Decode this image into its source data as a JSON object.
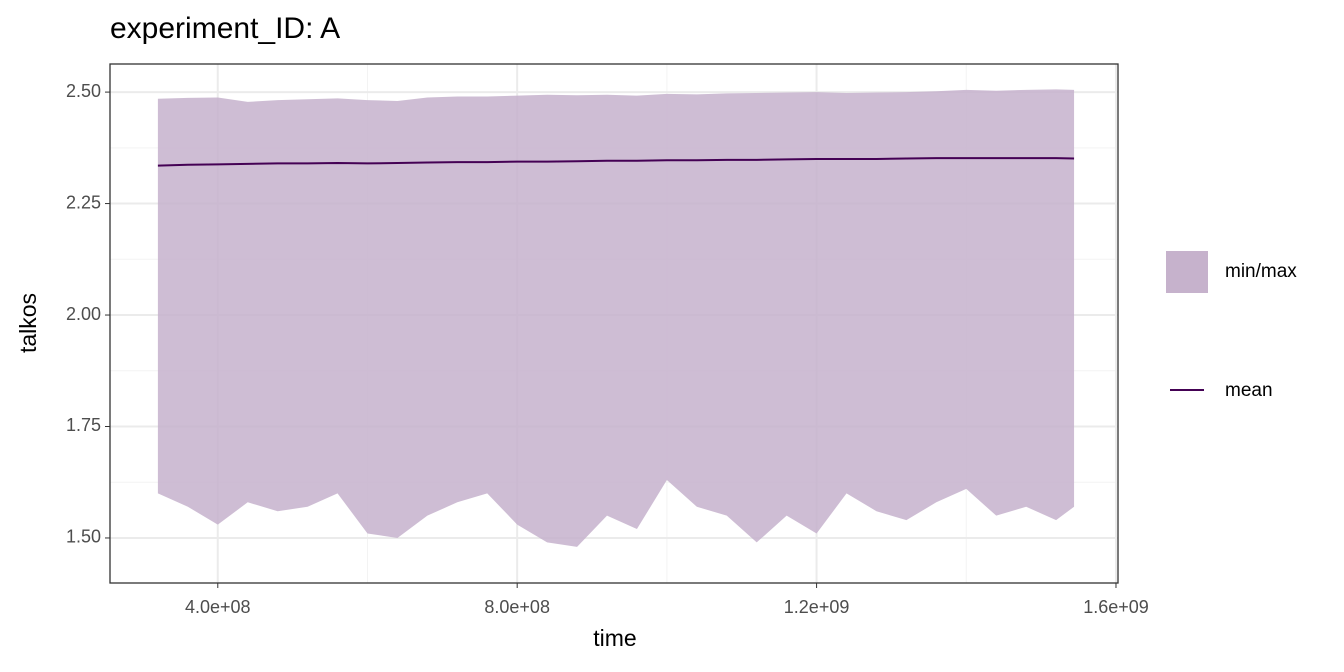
{
  "chart_data": {
    "type": "ribbon-line",
    "title": "experiment_ID: A",
    "x_label": "time",
    "y_label": "talkos",
    "x": [
      320000000,
      360000000,
      400000000,
      440000000,
      480000000,
      520000000,
      560000000,
      600000000,
      640000000,
      680000000,
      720000000,
      760000000,
      800000000,
      840000000,
      880000000,
      920000000,
      960000000,
      1000000000,
      1040000000,
      1080000000,
      1120000000,
      1160000000,
      1200000000,
      1240000000,
      1280000000,
      1320000000,
      1360000000,
      1400000000,
      1440000000,
      1480000000,
      1520000000,
      1544000000
    ],
    "series": [
      {
        "name": "min/max",
        "color": "#c6b2cc",
        "ymin": [
          1.6,
          1.57,
          1.53,
          1.58,
          1.56,
          1.57,
          1.6,
          1.51,
          1.5,
          1.55,
          1.58,
          1.6,
          1.53,
          1.49,
          1.48,
          1.55,
          1.52,
          1.63,
          1.57,
          1.55,
          1.49,
          1.55,
          1.51,
          1.6,
          1.56,
          1.54,
          1.58,
          1.61,
          1.55,
          1.57,
          1.54,
          1.57
        ],
        "ymax": [
          2.485,
          2.487,
          2.488,
          2.478,
          2.482,
          2.484,
          2.486,
          2.482,
          2.48,
          2.488,
          2.49,
          2.49,
          2.492,
          2.494,
          2.493,
          2.494,
          2.492,
          2.496,
          2.495,
          2.497,
          2.498,
          2.499,
          2.5,
          2.498,
          2.499,
          2.5,
          2.502,
          2.505,
          2.503,
          2.505,
          2.506,
          2.505
        ]
      },
      {
        "name": "mean",
        "color": "#440154",
        "values": [
          2.335,
          2.337,
          2.338,
          2.339,
          2.34,
          2.34,
          2.341,
          2.34,
          2.341,
          2.342,
          2.343,
          2.343,
          2.344,
          2.344,
          2.345,
          2.346,
          2.346,
          2.347,
          2.347,
          2.348,
          2.348,
          2.349,
          2.35,
          2.35,
          2.35,
          2.351,
          2.352,
          2.352,
          2.352,
          2.352,
          2.352,
          2.351
        ]
      }
    ],
    "xlim": [
      256000000,
      1602700000
    ],
    "ylim": [
      1.399,
      2.563
    ],
    "xticks": [
      {
        "value": 400000000,
        "label": "4.0e+08"
      },
      {
        "value": 800000000,
        "label": "8.0e+08"
      },
      {
        "value": 1200000000,
        "label": "1.2e+09"
      },
      {
        "value": 1600000000,
        "label": "1.6e+09"
      }
    ],
    "yticks": [
      {
        "value": 1.5,
        "label": "1.50"
      },
      {
        "value": 1.75,
        "label": "1.75"
      },
      {
        "value": 2.0,
        "label": "2.00"
      },
      {
        "value": 2.25,
        "label": "2.25"
      },
      {
        "value": 2.5,
        "label": "2.50"
      }
    ],
    "minor_xticks": [
      600000000,
      1000000000,
      1400000000
    ],
    "minor_yticks": [
      1.625,
      1.875,
      2.125,
      2.375
    ],
    "grid": true,
    "legend": "right"
  }
}
